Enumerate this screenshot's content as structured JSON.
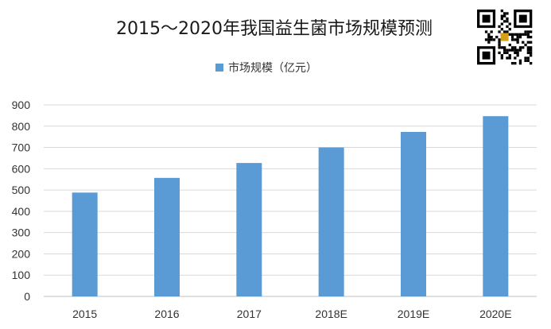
{
  "chart_data": {
    "type": "bar",
    "title": "2015～2020年我国益生菌市场规模预测",
    "xlabel": "",
    "ylabel": "",
    "categories": [
      "2015",
      "2016",
      "2017",
      "2018E",
      "2019E",
      "2020E"
    ],
    "series": [
      {
        "name": "市场规模（亿元）",
        "values": [
          488,
          557,
          627,
          700,
          773,
          847
        ],
        "color": "#5b9bd5"
      }
    ],
    "ylim": [
      0,
      900
    ],
    "yticks": [
      0,
      100,
      200,
      300,
      400,
      500,
      600,
      700,
      800,
      900
    ],
    "grid": true,
    "legend_position": "top-center"
  },
  "qr_code_icon": "qr-code-icon"
}
